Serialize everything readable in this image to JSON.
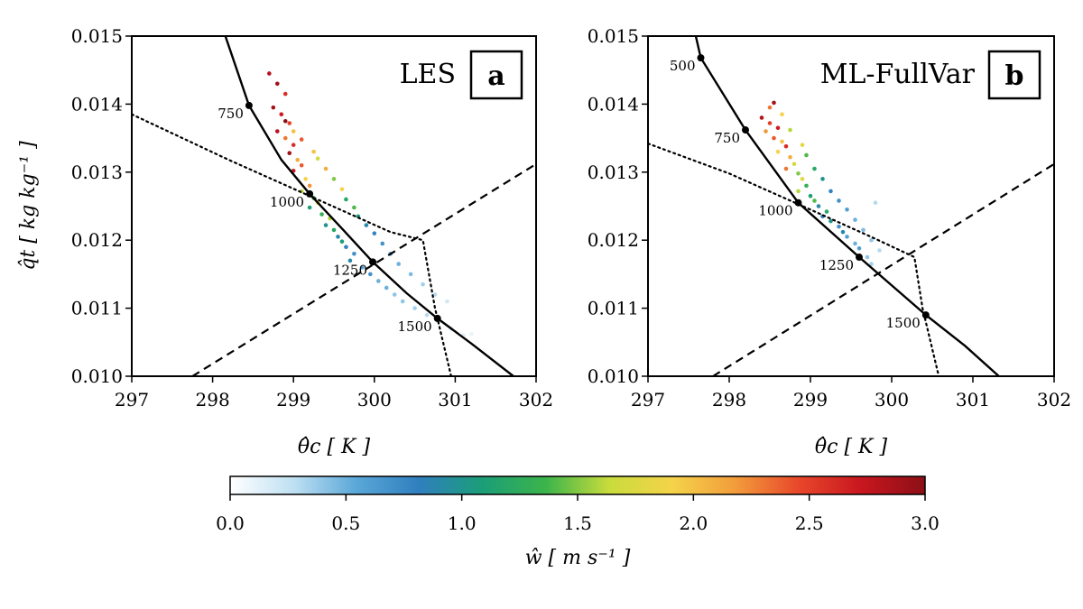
{
  "chart_data": [
    {
      "type": "scatter",
      "panel": "left",
      "title": "LES",
      "letter": "a",
      "xlabel": "θ̂c [ K ]",
      "ylabel": "q̂t [ kg kg⁻¹ ]",
      "xlim": [
        297,
        302
      ],
      "ylim": [
        0.01,
        0.015
      ],
      "xticks": [
        "297",
        "298",
        "299",
        "300",
        "301",
        "302"
      ],
      "yticks": [
        "0.010",
        "0.011",
        "0.012",
        "0.013",
        "0.014",
        "0.015"
      ],
      "solid_curve": {
        "x": [
          298.1,
          298.45,
          298.85,
          299.2,
          299.6,
          299.98,
          300.4,
          300.78,
          301.2,
          301.72
        ],
        "y": [
          0.0152,
          0.01398,
          0.01318,
          0.01268,
          0.01217,
          0.01168,
          0.01122,
          0.01085,
          0.01048,
          0.01
        ]
      },
      "markers": [
        {
          "label": "750",
          "x": 298.45,
          "y": 0.01398
        },
        {
          "label": "1000",
          "x": 299.2,
          "y": 0.01268
        },
        {
          "label": "1250",
          "x": 299.98,
          "y": 0.01168
        },
        {
          "label": "1500",
          "x": 300.78,
          "y": 0.01085
        }
      ],
      "dotted_curve": {
        "x": [
          297.0,
          298.2,
          299.2,
          300.2,
          300.6,
          300.75,
          300.95
        ],
        "y": [
          0.01385,
          0.01318,
          0.01265,
          0.01212,
          0.012,
          0.011,
          0.01
        ]
      },
      "dashed_line": {
        "x": [
          297.75,
          302.0
        ],
        "y": [
          0.01,
          0.01312
        ]
      },
      "points": [
        [
          298.7,
          0.01445,
          2.8
        ],
        [
          298.8,
          0.0143,
          2.9
        ],
        [
          298.9,
          0.01415,
          2.6
        ],
        [
          298.75,
          0.01395,
          2.9
        ],
        [
          298.85,
          0.01385,
          2.7
        ],
        [
          298.95,
          0.01372,
          2.5
        ],
        [
          298.8,
          0.0136,
          2.8
        ],
        [
          298.9,
          0.0135,
          2.3
        ],
        [
          299.0,
          0.0134,
          2.6
        ],
        [
          298.95,
          0.01328,
          2.9
        ],
        [
          299.05,
          0.01318,
          2.1
        ],
        [
          299.1,
          0.0131,
          2.4
        ],
        [
          299.0,
          0.01302,
          2.7
        ],
        [
          299.15,
          0.0129,
          1.9
        ],
        [
          299.2,
          0.0128,
          2.2
        ],
        [
          299.1,
          0.01272,
          1.6
        ],
        [
          299.25,
          0.01262,
          1.4
        ],
        [
          299.3,
          0.01255,
          1.8
        ],
        [
          299.2,
          0.01248,
          1.1
        ],
        [
          299.35,
          0.01238,
          1.3
        ],
        [
          299.45,
          0.01232,
          1.6
        ],
        [
          299.4,
          0.01222,
          1.0
        ],
        [
          299.5,
          0.01215,
          1.2
        ],
        [
          299.55,
          0.01205,
          0.9
        ],
        [
          299.6,
          0.01198,
          1.1
        ],
        [
          299.65,
          0.0119,
          0.8
        ],
        [
          299.75,
          0.0118,
          0.7
        ],
        [
          299.7,
          0.0117,
          0.9
        ],
        [
          299.85,
          0.0116,
          0.6
        ],
        [
          299.95,
          0.0115,
          0.7
        ],
        [
          300.05,
          0.0114,
          0.5
        ],
        [
          300.15,
          0.0113,
          0.5
        ],
        [
          300.25,
          0.0112,
          0.4
        ],
        [
          300.35,
          0.0111,
          0.4
        ],
        [
          300.5,
          0.011,
          0.35
        ],
        [
          300.65,
          0.0109,
          0.3
        ],
        [
          300.8,
          0.0108,
          0.25
        ],
        [
          300.95,
          0.0107,
          0.2
        ],
        [
          301.1,
          0.0106,
          0.15
        ],
        [
          301.2,
          0.01062,
          0.1
        ],
        [
          298.9,
          0.01375,
          3.0
        ],
        [
          299.0,
          0.0136,
          2.0
        ],
        [
          299.1,
          0.01348,
          2.4
        ],
        [
          299.25,
          0.0133,
          2.0
        ],
        [
          299.3,
          0.0132,
          1.7
        ],
        [
          299.4,
          0.01305,
          2.1
        ],
        [
          299.5,
          0.0129,
          1.5
        ],
        [
          299.6,
          0.01275,
          1.9
        ],
        [
          299.65,
          0.0126,
          1.2
        ],
        [
          299.75,
          0.01248,
          1.4
        ],
        [
          299.8,
          0.01235,
          1.1
        ],
        [
          299.9,
          0.01222,
          0.9
        ],
        [
          300.0,
          0.0121,
          0.8
        ],
        [
          300.1,
          0.01195,
          0.7
        ],
        [
          300.2,
          0.0118,
          0.6
        ],
        [
          300.3,
          0.01165,
          0.5
        ],
        [
          300.45,
          0.0115,
          0.45
        ],
        [
          300.6,
          0.01135,
          0.35
        ],
        [
          300.75,
          0.0112,
          0.3
        ],
        [
          300.9,
          0.0111,
          0.2
        ]
      ]
    },
    {
      "type": "scatter",
      "panel": "right",
      "title": "ML-FullVar",
      "letter": "b",
      "xlabel": "θ̂c [ K ]",
      "ylabel": "",
      "xlim": [
        297,
        302
      ],
      "ylim": [
        0.01,
        0.015
      ],
      "xticks": [
        "297",
        "298",
        "299",
        "300",
        "301",
        "302"
      ],
      "yticks": [
        "0.010",
        "0.011",
        "0.012",
        "0.013",
        "0.014",
        "0.015"
      ],
      "solid_curve": {
        "x": [
          297.55,
          297.65,
          298.2,
          298.85,
          299.6,
          300.42,
          300.9,
          301.32
        ],
        "y": [
          0.0152,
          0.01468,
          0.01362,
          0.01255,
          0.01175,
          0.0109,
          0.01045,
          0.01
        ]
      },
      "markers": [
        {
          "label": "500",
          "x": 297.65,
          "y": 0.01468
        },
        {
          "label": "750",
          "x": 298.2,
          "y": 0.01362
        },
        {
          "label": "1000",
          "x": 298.85,
          "y": 0.01255
        },
        {
          "label": "1250",
          "x": 299.6,
          "y": 0.01175
        },
        {
          "label": "1500",
          "x": 300.42,
          "y": 0.0109
        }
      ],
      "dotted_curve": {
        "x": [
          297.0,
          298.0,
          299.0,
          299.8,
          300.28,
          300.38,
          300.58
        ],
        "y": [
          0.01342,
          0.01298,
          0.01245,
          0.01202,
          0.01175,
          0.011,
          0.01
        ]
      },
      "dashed_line": {
        "x": [
          297.8,
          302.0
        ],
        "y": [
          0.01,
          0.01312
        ]
      },
      "points": [
        [
          298.55,
          0.01402,
          2.9
        ],
        [
          298.4,
          0.0138,
          2.8
        ],
        [
          298.5,
          0.01372,
          2.5
        ],
        [
          298.6,
          0.01365,
          2.7
        ],
        [
          298.45,
          0.0136,
          2.2
        ],
        [
          298.55,
          0.0135,
          2.4
        ],
        [
          298.65,
          0.01345,
          2.0
        ],
        [
          298.7,
          0.01338,
          2.6
        ],
        [
          298.6,
          0.0133,
          1.9
        ],
        [
          298.75,
          0.01322,
          2.1
        ],
        [
          298.8,
          0.01312,
          1.7
        ],
        [
          298.7,
          0.01305,
          2.3
        ],
        [
          298.85,
          0.01298,
          1.5
        ],
        [
          298.9,
          0.0129,
          1.8
        ],
        [
          298.95,
          0.0128,
          1.3
        ],
        [
          298.85,
          0.01272,
          1.6
        ],
        [
          299.0,
          0.01265,
          1.1
        ],
        [
          299.05,
          0.01258,
          1.4
        ],
        [
          299.1,
          0.0125,
          0.9
        ],
        [
          299.2,
          0.01242,
          1.2
        ],
        [
          299.15,
          0.01235,
          0.8
        ],
        [
          299.25,
          0.01228,
          1.0
        ],
        [
          299.35,
          0.0122,
          0.7
        ],
        [
          299.4,
          0.01212,
          0.9
        ],
        [
          299.45,
          0.01205,
          0.6
        ],
        [
          299.55,
          0.01195,
          0.5
        ],
        [
          299.6,
          0.01188,
          0.6
        ],
        [
          299.7,
          0.01175,
          0.4
        ],
        [
          299.75,
          0.01165,
          0.35
        ],
        [
          299.8,
          0.01255,
          0.3
        ],
        [
          298.5,
          0.01395,
          2.3
        ],
        [
          298.65,
          0.01385,
          1.9
        ],
        [
          298.75,
          0.01362,
          1.6
        ],
        [
          298.9,
          0.0134,
          1.8
        ],
        [
          298.95,
          0.01325,
          1.4
        ],
        [
          299.05,
          0.01305,
          1.2
        ],
        [
          299.15,
          0.0129,
          1.0
        ],
        [
          299.25,
          0.01272,
          0.8
        ],
        [
          299.35,
          0.01258,
          0.7
        ],
        [
          299.45,
          0.01245,
          0.6
        ],
        [
          299.55,
          0.0123,
          0.5
        ],
        [
          299.65,
          0.01215,
          0.45
        ],
        [
          299.75,
          0.012,
          0.4
        ],
        [
          299.85,
          0.01185,
          0.3
        ]
      ]
    },
    {
      "type": "colorbar",
      "label": "ŵ [ m s⁻¹ ]",
      "range": [
        0.0,
        3.0
      ],
      "ticks": [
        "0.0",
        "0.5",
        "1.0",
        "1.5",
        "2.0",
        "2.5",
        "3.0"
      ],
      "stops": [
        "#ffffff",
        "#bfe0f2",
        "#5aa7d8",
        "#2f7fbe",
        "#1b9e77",
        "#3cb44b",
        "#c9dc3c",
        "#f5d34a",
        "#f29c3b",
        "#e8472b",
        "#c8161f",
        "#8c0f16"
      ]
    }
  ]
}
